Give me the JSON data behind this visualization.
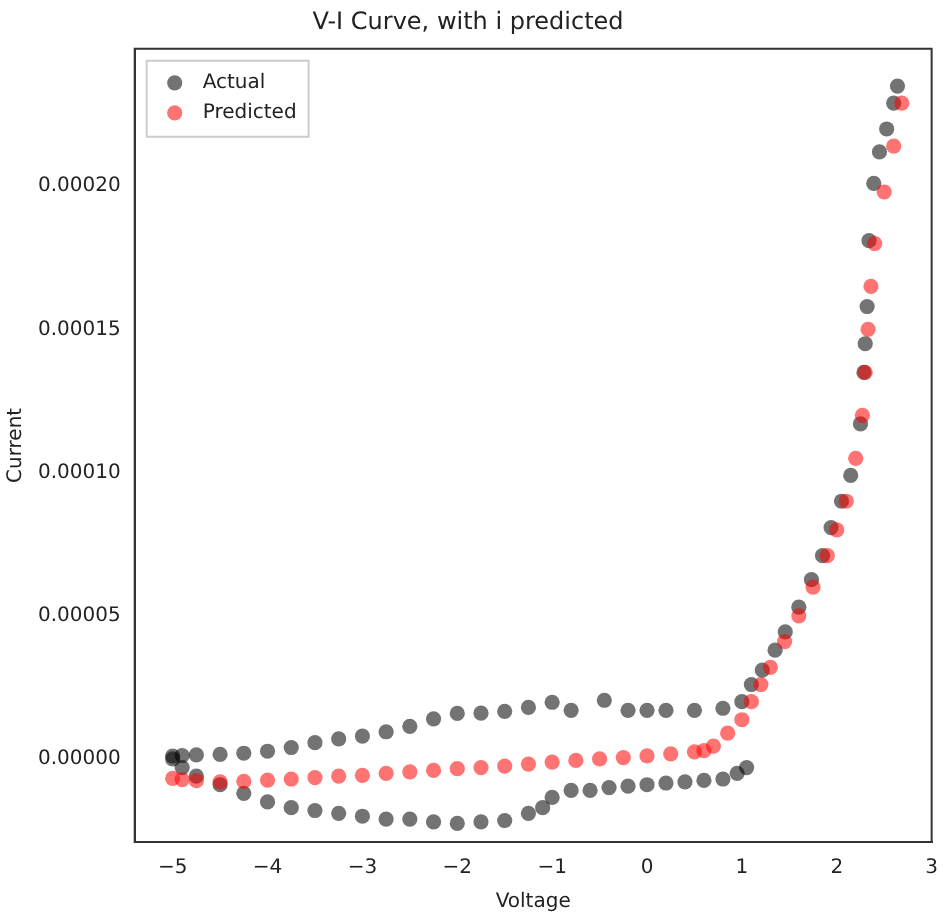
{
  "chart_data": {
    "type": "scatter",
    "title": "V-I Curve, with i predicted",
    "xlabel": "Voltage",
    "ylabel": "Current",
    "xlim": [
      -5.4,
      3.0
    ],
    "ylim": [
      -2.9e-05,
      0.000248
    ],
    "xticks": [
      -5,
      -4,
      -3,
      -2,
      -1,
      0,
      1,
      2,
      3
    ],
    "yticks": [
      {
        "value": 0,
        "label": "0.00000"
      },
      {
        "value": 5e-05,
        "label": "0.00005"
      },
      {
        "value": 0.0001,
        "label": "0.00010"
      },
      {
        "value": 0.00015,
        "label": "0.00015"
      },
      {
        "value": 0.0002,
        "label": "0.00020"
      }
    ],
    "grid": false,
    "legend": "top left",
    "marker": "circle",
    "series": [
      {
        "name": "Actual",
        "color": "#000000",
        "x": [
          -5,
          -4.9,
          -4.75,
          -4.5,
          -4.25,
          -4,
          -3.75,
          -3.5,
          -3.25,
          -3,
          -2.75,
          -2.5,
          -2.25,
          -2,
          -1.75,
          -1.5,
          -1.25,
          -1.1,
          -1,
          -0.8,
          -0.6,
          -0.4,
          -0.2,
          0,
          0.2,
          0.4,
          0.6,
          0.8,
          0.95,
          1.05,
          -5,
          -4.9,
          -4.75,
          -4.5,
          -4.25,
          -4,
          -3.75,
          -3.5,
          -3.25,
          -3,
          -2.75,
          -2.5,
          -2.25,
          -2,
          -1.75,
          -1.5,
          -1.25,
          -1,
          -0.8,
          -0.45,
          -0.2,
          0,
          0.2,
          0.5,
          0.8,
          1,
          1.1,
          1.215,
          1.35,
          1.457,
          1.6,
          1.733,
          1.85,
          1.94,
          2.05,
          2.147,
          2.25,
          2.286,
          2.3,
          2.32,
          2.34,
          2.39,
          2.45,
          2.526,
          2.6,
          2.64
        ],
        "values": [
          0,
          -3e-06,
          -6e-06,
          -9e-06,
          -1.2e-05,
          -1.5e-05,
          -1.7e-05,
          -1.8e-05,
          -1.9e-05,
          -2e-05,
          -2.1e-05,
          -2.1e-05,
          -2.2e-05,
          -2.25e-05,
          -2.2e-05,
          -2.15e-05,
          -1.9e-05,
          -1.7e-05,
          -1.34e-05,
          -1.1e-05,
          -1.1e-05,
          -1e-05,
          -9.5e-06,
          -9e-06,
          -8.4e-06,
          -8e-06,
          -7.5e-06,
          -7e-06,
          -5e-06,
          -3e-06,
          1e-06,
          1.2e-06,
          1.4e-06,
          1.6e-06,
          2e-06,
          2.7e-06,
          4e-06,
          5.7e-06,
          7e-06,
          8e-06,
          9.5e-06,
          1.14e-05,
          1.4e-05,
          1.59e-05,
          1.6e-05,
          1.66e-05,
          1.8e-05,
          1.98e-05,
          1.7e-05,
          2.05e-05,
          1.7e-05,
          1.7e-05,
          1.7e-05,
          1.7e-05,
          1.77e-05,
          2e-05,
          2.6e-05,
          3.1e-05,
          3.8e-05,
          4.44e-05,
          5.3e-05,
          6.26e-05,
          7.1e-05,
          8.08e-05,
          9e-05,
          9.9e-05,
          0.000117,
          0.000135,
          0.000145,
          0.000158,
          0.000181,
          0.000201,
          0.000212,
          0.00022,
          0.000229,
          0.000235
        ]
      },
      {
        "name": "Predicted",
        "color": "#ff0000",
        "x": [
          -5,
          -4.9,
          -4.75,
          -4.5,
          -4.25,
          -4,
          -3.75,
          -3.5,
          -3.25,
          -3,
          -2.75,
          -2.5,
          -2.25,
          -2,
          -1.75,
          -1.5,
          -1.25,
          -1,
          -0.75,
          -0.5,
          -0.25,
          0,
          0.25,
          0.5,
          0.6,
          0.7,
          0.85,
          1,
          1.1,
          1.2,
          1.3,
          1.45,
          1.6,
          1.75,
          1.9,
          2.0,
          2.1,
          2.2,
          2.27,
          2.3,
          2.33,
          2.36,
          2.4,
          2.5,
          2.6,
          2.685
        ],
        "values": [
          -6.8e-06,
          -7.2e-06,
          -7.6e-06,
          -8e-06,
          -7.8e-06,
          -7.4e-06,
          -7e-06,
          -6.5e-06,
          -6e-06,
          -5.7e-06,
          -5e-06,
          -4.5e-06,
          -4e-06,
          -3.4e-06,
          -3e-06,
          -2.5e-06,
          -1.8e-06,
          -1.1e-06,
          -5e-07,
          0,
          5e-07,
          1.1e-06,
          1.8e-06,
          2.5e-06,
          2.9e-06,
          4.5e-06,
          9e-06,
          1.37e-05,
          2e-05,
          2.6e-05,
          3.2e-05,
          4.1e-05,
          5e-05,
          6e-05,
          7.1e-05,
          8e-05,
          9e-05,
          0.000105,
          0.00012,
          0.000135,
          0.00015,
          0.000165,
          0.00018,
          0.000198,
          0.000214,
          0.000229
        ]
      }
    ]
  }
}
